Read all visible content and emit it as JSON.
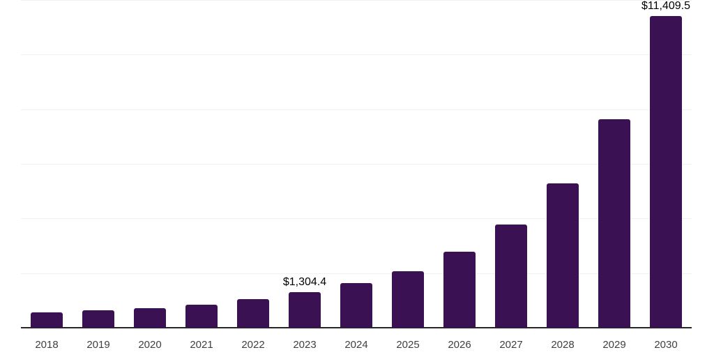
{
  "chart_data": {
    "type": "bar",
    "title": "",
    "xlabel": "",
    "ylabel": "",
    "categories": [
      "2018",
      "2019",
      "2020",
      "2021",
      "2022",
      "2023",
      "2024",
      "2025",
      "2026",
      "2027",
      "2028",
      "2029",
      "2030"
    ],
    "values": [
      560,
      630,
      715,
      840,
      1040,
      1304.4,
      1645,
      2060,
      2780,
      3790,
      5275,
      7640,
      11409.5
    ],
    "value_labels": {
      "2023": "$1,304.4",
      "2030": "$11,409.5"
    },
    "ylim": [
      0,
      12000
    ],
    "gridline_step": 2000,
    "grid": true,
    "legend": false,
    "y_tick_labels_shown": false,
    "colors": {
      "bar": "#3a1153",
      "gridline": "#f0f0f0",
      "axis": "#262626",
      "tick_label": "#404040",
      "value_label": "#000000"
    }
  }
}
